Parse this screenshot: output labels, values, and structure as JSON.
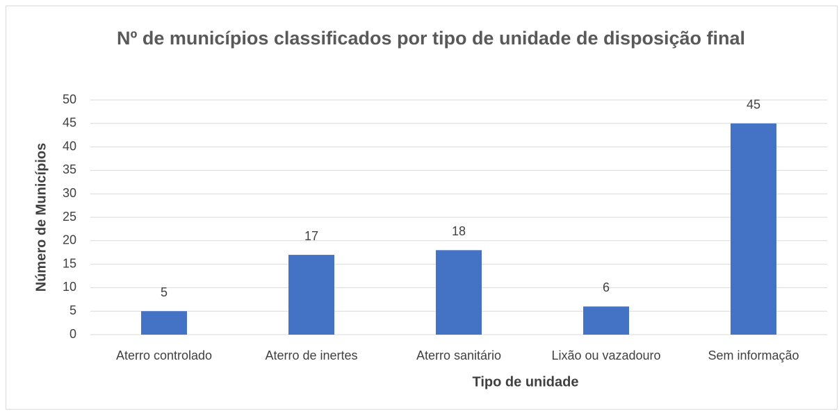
{
  "chart_data": {
    "type": "bar",
    "title": "Nº de municípios classificados por tipo de unidade de disposição final",
    "x_label": "Tipo de unidade",
    "y_label": "Número de Municípios",
    "categories": [
      "Aterro controlado",
      "Aterro de inertes",
      "Aterro sanitário",
      "Lixão ou vazadouro",
      "Sem informação"
    ],
    "values": [
      5,
      17,
      18,
      6,
      45
    ],
    "color": "#4472c4",
    "ylim": [
      0,
      50
    ],
    "yticks": [
      0,
      5,
      10,
      15,
      20,
      25,
      30,
      35,
      40,
      45,
      50
    ],
    "grid": true
  }
}
